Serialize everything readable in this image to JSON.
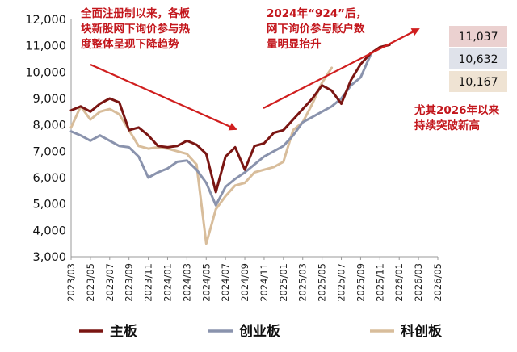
{
  "chart_data": {
    "type": "line",
    "x": [
      "2023/03",
      "2023/04",
      "2023/05",
      "2023/06",
      "2023/07",
      "2023/08",
      "2023/09",
      "2023/10",
      "2023/11",
      "2023/12",
      "2024/01",
      "2024/02",
      "2024/03",
      "2024/04",
      "2024/05",
      "2024/06",
      "2024/07",
      "2024/08",
      "2024/09",
      "2024/10",
      "2024/11",
      "2024/12",
      "2025/01",
      "2025/02",
      "2025/03",
      "2025/04",
      "2025/05",
      "2025/06",
      "2025/07",
      "2025/08",
      "2025/09",
      "2025/10",
      "2025/11",
      "2025/12",
      "2026/01",
      "2026/02",
      "2026/03",
      "2026/04",
      "2026/05"
    ],
    "x_tick_labels": [
      "2023/03",
      "2023/05",
      "2023/07",
      "2023/09",
      "2023/11",
      "2024/01",
      "2024/03",
      "2024/05",
      "2024/07",
      "2024/09",
      "2024/11",
      "2025/01",
      "2025/03",
      "2025/05",
      "2025/07",
      "2025/09",
      "2025/11",
      "2026/01",
      "2026/03",
      "2026/05"
    ],
    "ylim": [
      3000,
      12000
    ],
    "y_ticks": [
      "3,000",
      "4,000",
      "5,000",
      "6,000",
      "7,000",
      "8,000",
      "9,000",
      "10,000",
      "11,000",
      "12,000"
    ],
    "y_tick_values": [
      3000,
      4000,
      5000,
      6000,
      7000,
      8000,
      9000,
      10000,
      11000,
      12000
    ],
    "series": [
      {
        "name": "主板",
        "color": "#7a1512",
        "values": [
          8550,
          8700,
          8500,
          8800,
          9000,
          8850,
          7800,
          7900,
          7600,
          7200,
          7150,
          7200,
          7400,
          7250,
          6900,
          5450,
          6800,
          7150,
          6300,
          7200,
          7300,
          7700,
          7800,
          8200,
          8600,
          9000,
          9500,
          9300,
          8800,
          9700,
          10300,
          10700,
          10950,
          11037,
          null,
          null,
          null,
          null,
          null
        ]
      },
      {
        "name": "创业板",
        "color": "#8a93ad",
        "values": [
          7750,
          7600,
          7400,
          7600,
          7400,
          7200,
          7150,
          6800,
          6000,
          6200,
          6350,
          6600,
          6650,
          6300,
          5800,
          4950,
          5650,
          5950,
          6200,
          6500,
          6800,
          7000,
          7200,
          7600,
          8100,
          8300,
          8500,
          8700,
          9000,
          9500,
          9800,
          10632,
          null,
          null,
          null,
          null,
          null,
          null,
          null
        ]
      },
      {
        "name": "科创板",
        "color": "#d8bd9b",
        "values": [
          7900,
          8700,
          8200,
          8500,
          8600,
          8400,
          7800,
          7200,
          7100,
          7150,
          7100,
          7000,
          6900,
          6500,
          3500,
          4800,
          5300,
          5700,
          5800,
          6200,
          6300,
          6400,
          6600,
          7800,
          8100,
          8800,
          9600,
          10167,
          null,
          null,
          null,
          null,
          null,
          null,
          null,
          null,
          null,
          null,
          null
        ]
      }
    ],
    "end_labels": [
      "11,037",
      "10,632",
      "10,167"
    ],
    "end_label_colors": [
      "#ebd1d0",
      "#dfe2ea",
      "#efe3d3"
    ],
    "annotations": [
      "全面注册制以来，各板\n块新股网下询价参与热\n度整体呈现下降趋势",
      "2024年“924”后，\n网下询价参与账户数\n量明显抬升",
      "尤其2026年以来\n持续突破新高"
    ],
    "annotation_color": "#c3161c",
    "arrow_color": "#d01e1e",
    "grid": false,
    "legend_position": "bottom"
  }
}
